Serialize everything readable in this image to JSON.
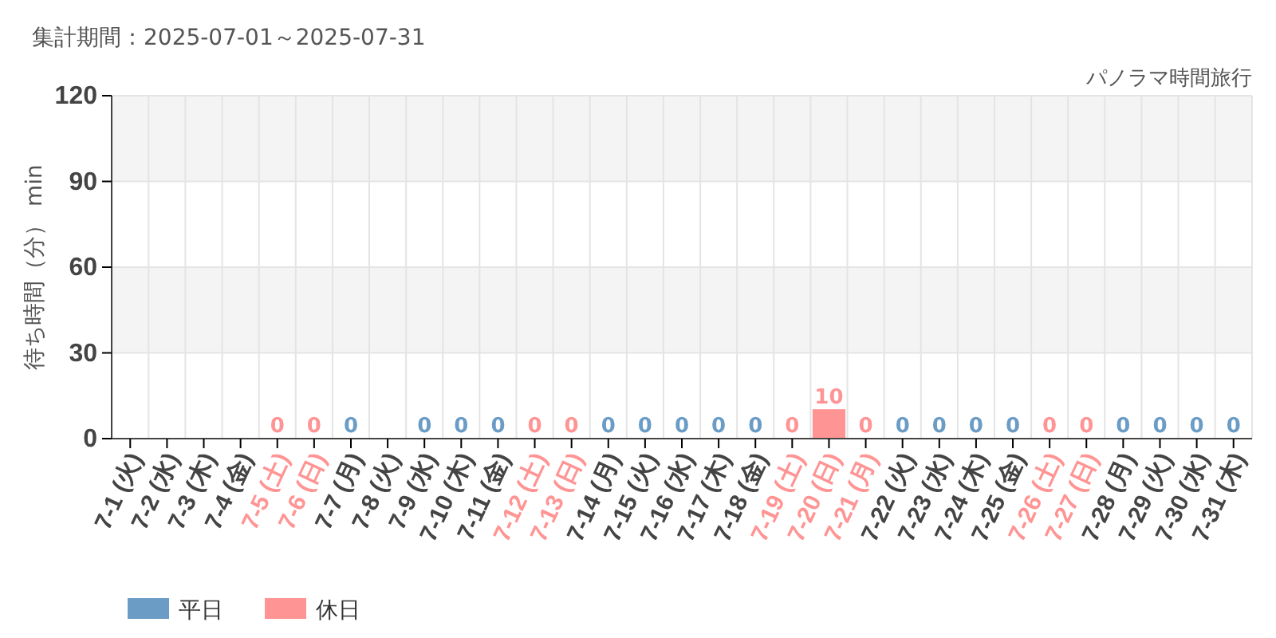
{
  "chart_data": {
    "type": "bar",
    "title": "集計期間：2025-07-01～2025-07-31",
    "subtitle": "パノラマ時間旅行",
    "ylabel": "待ち時間（分） min",
    "categories": [
      "7-1 (火)",
      "7-2 (水)",
      "7-3 (木)",
      "7-4 (金)",
      "7-5 (土)",
      "7-6 (日)",
      "7-7 (月)",
      "7-8 (火)",
      "7-9 (水)",
      "7-10 (木)",
      "7-11 (金)",
      "7-12 (土)",
      "7-13 (日)",
      "7-14 (月)",
      "7-15 (火)",
      "7-16 (水)",
      "7-17 (木)",
      "7-18 (金)",
      "7-19 (土)",
      "7-20 (日)",
      "7-21 (月)",
      "7-22 (火)",
      "7-23 (水)",
      "7-24 (木)",
      "7-25 (金)",
      "7-26 (土)",
      "7-27 (日)",
      "7-28 (月)",
      "7-29 (火)",
      "7-30 (水)",
      "7-31 (木)"
    ],
    "series": [
      {
        "name": "平日",
        "color": "#6a9cc6",
        "values": [
          null,
          null,
          null,
          null,
          null,
          null,
          0,
          null,
          0,
          0,
          0,
          null,
          null,
          0,
          0,
          0,
          0,
          0,
          null,
          null,
          null,
          0,
          0,
          0,
          0,
          null,
          null,
          0,
          0,
          0,
          0
        ]
      },
      {
        "name": "休日",
        "color": "#ff9494",
        "values": [
          null,
          null,
          null,
          null,
          0,
          0,
          null,
          null,
          null,
          null,
          null,
          0,
          0,
          null,
          null,
          null,
          null,
          null,
          0,
          10,
          0,
          null,
          null,
          null,
          null,
          0,
          0,
          null,
          null,
          null,
          null
        ]
      }
    ],
    "stacked": true,
    "ylim": [
      0,
      120
    ],
    "yticks": [
      0,
      30,
      60,
      90,
      120
    ],
    "grid": true,
    "data_labels": true,
    "legend": "bottom left"
  }
}
